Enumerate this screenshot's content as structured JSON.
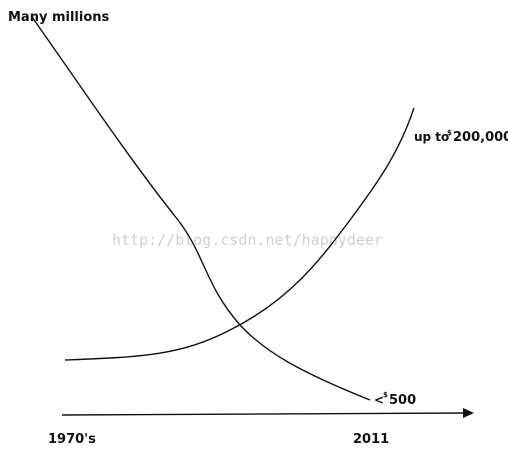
{
  "watermark": "http://blog.csdn.net/happydeer",
  "chart_data": {
    "type": "line",
    "x_tick_labels": [
      "1970's",
      "2011"
    ],
    "y_annotation_top": "Many millions",
    "series": [
      {
        "end_label_prefix": "<",
        "end_label_sup": "$",
        "end_label_value": "500"
      },
      {
        "end_label_prefix": "up to",
        "end_label_sup": "$",
        "end_label_value": "200,000"
      }
    ],
    "axis": {
      "x_arrow": true,
      "y_axis_drawn": false,
      "grid": false
    }
  }
}
